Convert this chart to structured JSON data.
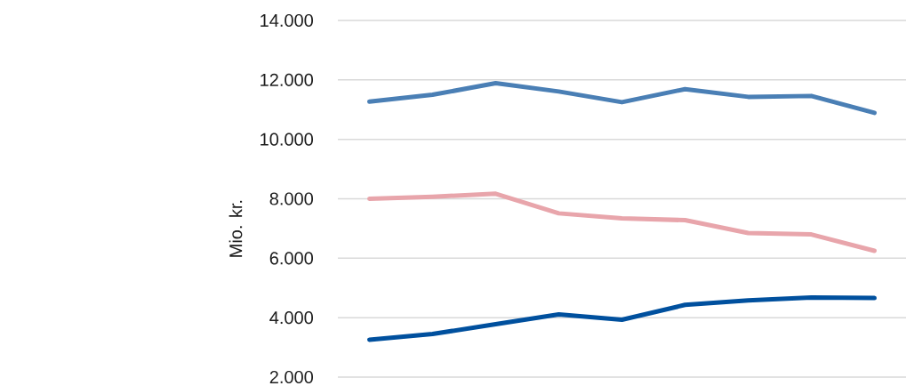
{
  "chart_data": {
    "type": "line",
    "ylabel": "Mio. kr.",
    "categories": [
      null,
      null,
      null,
      null,
      null,
      null,
      null,
      null,
      null
    ],
    "series": [
      {
        "color": "#4a7fb5",
        "values": [
          11270,
          11500,
          11890,
          11610,
          11250,
          11690,
          11430,
          11460,
          10890
        ]
      },
      {
        "color": "#e8a5ab",
        "values": [
          8000,
          8070,
          8170,
          7510,
          7340,
          7280,
          6850,
          6800,
          6250
        ]
      },
      {
        "color": "#00509e",
        "values": [
          3260,
          3450,
          3780,
          4110,
          3930,
          4430,
          4580,
          4680,
          4660
        ]
      }
    ],
    "ylim": [
      2000,
      14000
    ],
    "yticks": [
      {
        "value": 2000,
        "label": "2.000"
      },
      {
        "value": 4000,
        "label": "4.000"
      },
      {
        "value": 6000,
        "label": "6.000"
      },
      {
        "value": 8000,
        "label": "8.000"
      },
      {
        "value": 10000,
        "label": "10.000"
      },
      {
        "value": 12000,
        "label": "12.000"
      },
      {
        "value": 14000,
        "label": "14.000"
      }
    ],
    "grid": "y",
    "tick_labels": "y",
    "marker": "none",
    "line_style": "solid"
  }
}
